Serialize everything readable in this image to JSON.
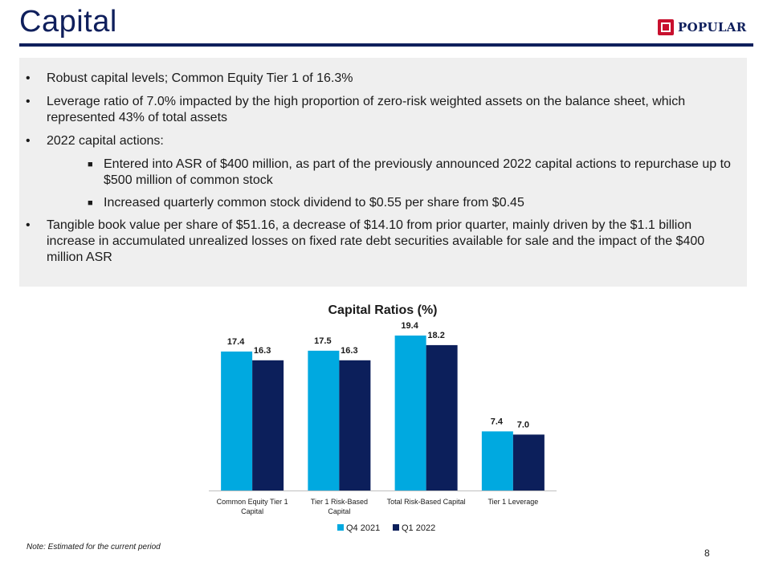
{
  "slide": {
    "title": "Capital",
    "logo_text": "POPULAR",
    "page_number": "8",
    "note": "Note: Estimated for the current period"
  },
  "bullets": [
    {
      "text": "Robust capital levels; Common Equity Tier 1 of 16.3%",
      "level": 1
    },
    {
      "text": "Leverage ratio of 7.0% impacted by the high proportion of zero-risk weighted assets on the balance sheet, which represented 43% of total assets",
      "level": 1
    },
    {
      "text": "2022 capital actions:",
      "level": 1
    },
    {
      "text": "Entered into ASR of $400 million, as part of the previously announced 2022 capital actions to repurchase up to $500 million of common stock",
      "level": 2
    },
    {
      "text": "Increased quarterly common stock dividend to $0.55 per share from $0.45",
      "level": 2
    },
    {
      "text": "Tangible book value per share of $51.16, a decrease of $14.10 from prior quarter, mainly driven by the $1.1 billion increase in accumulated unrealized losses on fixed rate debt securities available for sale and the impact of the $400 million ASR",
      "level": 1
    }
  ],
  "colors": {
    "brand_navy": "#0f1f5c",
    "brand_red": "#c8102e",
    "series_q4_2021": "#00a9e0",
    "series_q1_2022": "#0c1f5b"
  },
  "chart_data": {
    "type": "bar",
    "title": "Capital Ratios (%)",
    "categories": [
      "Common Equity Tier 1 Capital",
      "Tier 1 Risk-Based Capital",
      "Total Risk-Based Capital",
      "Tier 1 Leverage"
    ],
    "series": [
      {
        "name": "Q4 2021",
        "values": [
          17.4,
          17.5,
          19.4,
          7.4
        ],
        "color": "#00a9e0"
      },
      {
        "name": "Q1 2022",
        "values": [
          16.3,
          16.3,
          18.2,
          7.0
        ],
        "color": "#0c1f5b"
      }
    ],
    "ylim": [
      0,
      20
    ],
    "grid": false,
    "legend": "bottom",
    "data_labels": true
  }
}
